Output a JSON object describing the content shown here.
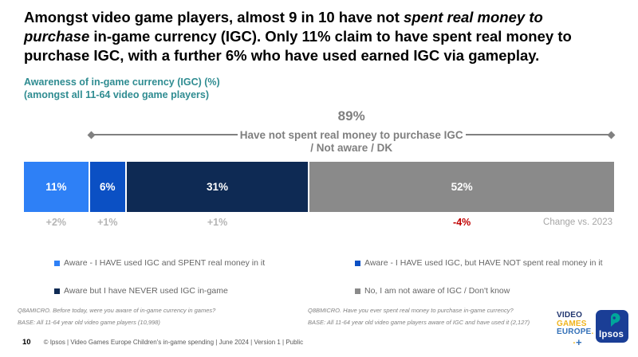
{
  "header": {
    "title_lines": [
      [
        {
          "text": "Amongst video game players, almost 9 in 10 have not ",
          "italic": false
        },
        {
          "text": "spent real money to",
          "italic": true
        }
      ],
      [
        {
          "text": "purchase",
          "italic": true
        },
        {
          "text": " in-game currency (IGC). Only 11% claim to have spent real money to",
          "italic": false
        }
      ],
      [
        {
          "text": "purchase IGC, with a further 6% who have used earned IGC via gameplay.",
          "italic": false
        }
      ]
    ],
    "subtitle_line1": "Awareness of in-game currency (IGC) (%)",
    "subtitle_line2": "(amongst all 11-64 video game players)",
    "subtitle_color": "#2F8C91"
  },
  "chart_data": {
    "type": "bar",
    "stacked": true,
    "orientation": "horizontal",
    "unit": "%",
    "xlim": [
      0,
      100
    ],
    "categories": [
      "Aware - I HAVE used IGC and SPENT real money in it",
      "Aware - I HAVE used IGC, but HAVE NOT spent real money in it",
      "Aware but I have NEVER used IGC in-game",
      "No, I am not aware of IGC / Don't know"
    ],
    "values": [
      11,
      6,
      31,
      52
    ],
    "value_labels": [
      "11%",
      "6%",
      "31%",
      "52%"
    ],
    "segment_colors": [
      "#2E80F6",
      "#0B50C4",
      "#0E2A54",
      "#8A8A8A"
    ],
    "changes": [
      "+2%",
      "+1%",
      "+1%",
      "-4%"
    ],
    "change_caption": "Change vs. 2023",
    "negative_change_color": "#C00000",
    "bracket": {
      "value": "89%",
      "covers_percent": 89,
      "label_line1": "Have not spent real money to purchase IGC",
      "label_line2": "/ Not aware / DK"
    },
    "legend_position": "below"
  },
  "footnotes": {
    "left": [
      "Q8AMICRO. Before today, were you aware of in-game currency in games?",
      "BASE: All 11-64 year old video game players (10,998)"
    ],
    "right": [
      "Q8BMICRO. Have you ever spent real money to purchase in-game currency?",
      "BASE: All 11-64 year old video game players aware of IGC and have used it (2,127)"
    ]
  },
  "footer": {
    "page_number": "10",
    "copyright": "© Ipsos | Video Games Europe Children's in-game spending | June 2024 | Version 1 | Public"
  },
  "logos": {
    "vge": {
      "line1": "VIDEO",
      "line2": "GAMES",
      "line3": "EUROPE",
      "dot": ".",
      "plus_dot": "·",
      "plus": "+"
    },
    "ipsos": {
      "text": "Ipsos",
      "box_color": "#1A3E96",
      "figure_color": "#00A79B"
    }
  }
}
